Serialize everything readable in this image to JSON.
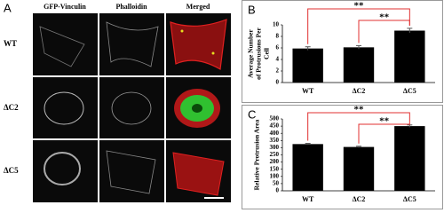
{
  "figure": {
    "panel_a": {
      "label": "A",
      "columns": [
        "GFP-Vinculin",
        "Phalloidin",
        "Merged"
      ],
      "rows": [
        "WT",
        "ΔC2",
        "ΔC5"
      ]
    },
    "panel_labels": [
      "B",
      "C"
    ]
  },
  "chart_data": [
    {
      "type": "bar",
      "y_label": [
        "Average Number",
        "of Protrusions Per",
        "Cell"
      ],
      "categories": [
        "WT",
        "ΔC2",
        "ΔC5"
      ],
      "values": [
        5.9,
        6.1,
        9.0
      ],
      "errors": [
        0.3,
        0.3,
        0.4
      ],
      "color": "#000000",
      "ylim": [
        0,
        10
      ],
      "yticks": [
        0,
        2,
        4,
        6,
        8,
        10
      ],
      "annotations": [
        "**",
        "**"
      ],
      "annotation_color": "#e03030"
    },
    {
      "type": "bar",
      "y_label": [
        "Relative Protrusion Area"
      ],
      "categories": [
        "WT",
        "ΔC2",
        "ΔC5"
      ],
      "values": [
        325,
        305,
        450
      ],
      "errors": [
        5,
        5,
        8
      ],
      "color": "#000000",
      "ylim": [
        0,
        500
      ],
      "yticks": [
        0,
        50,
        100,
        150,
        200,
        250,
        300,
        350,
        400,
        450,
        500
      ],
      "annotations": [
        "**",
        "**"
      ],
      "annotation_color": "#e03030"
    }
  ]
}
